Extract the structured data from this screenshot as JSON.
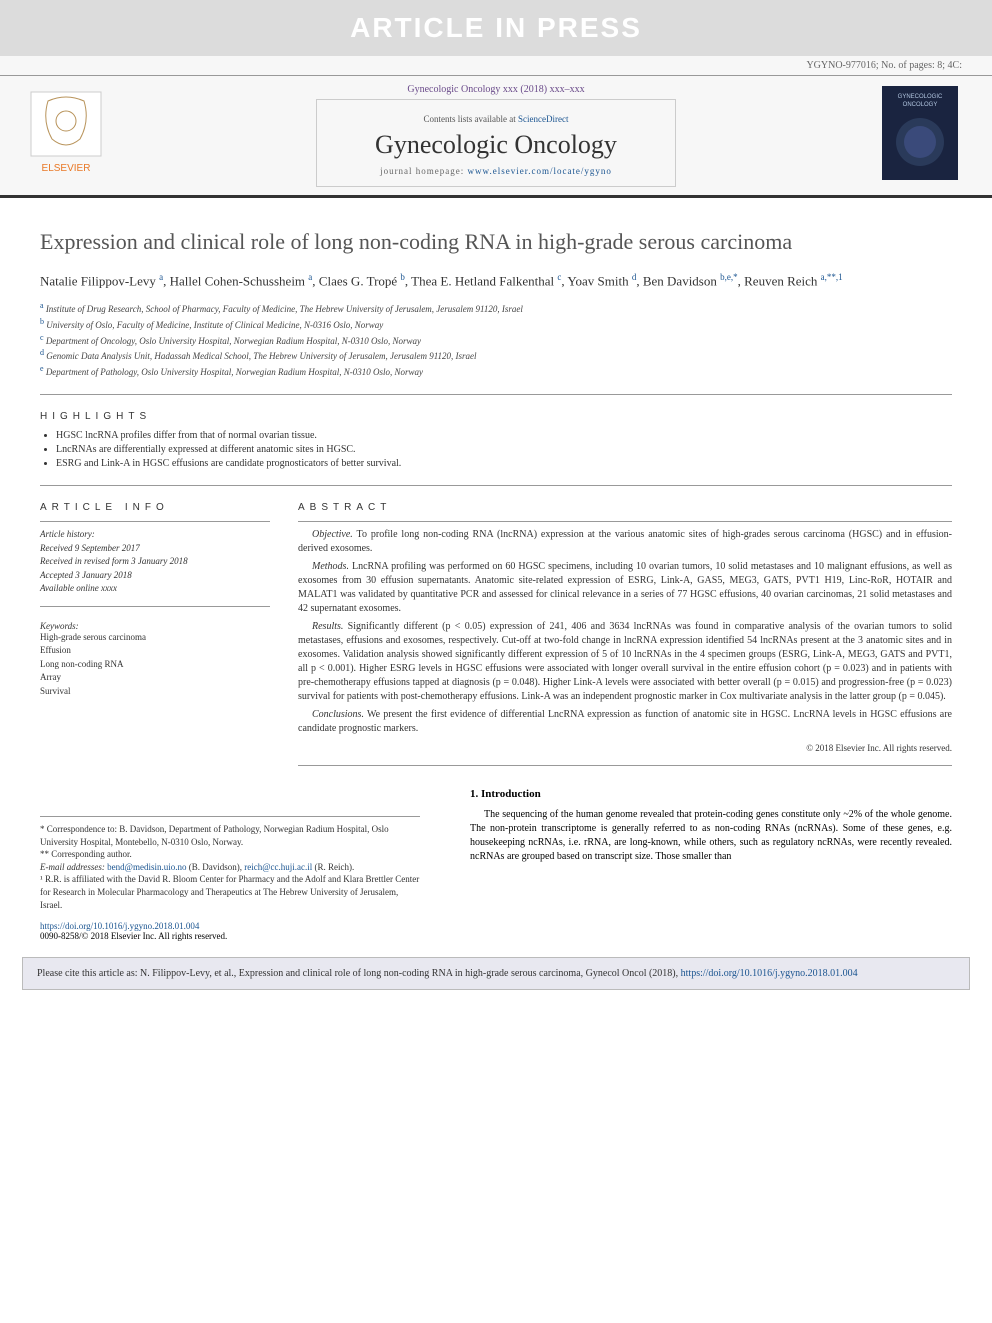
{
  "banner": "ARTICLE IN PRESS",
  "header": {
    "docref": "YGYNO-977016; No. of pages: 8; 4C:",
    "citation": "Gynecologic Oncology xxx (2018) xxx–xxx",
    "contents_prefix": "Contents lists available at ",
    "contents_link": "ScienceDirect",
    "journal": "Gynecologic Oncology",
    "homepage_prefix": "journal homepage: ",
    "homepage_link": "www.elsevier.com/locate/ygyno",
    "publisher_label": "ELSEVIER",
    "cover_label": "GYNECOLOGIC ONCOLOGY"
  },
  "title": "Expression and clinical role of long non-coding RNA in high-grade serous carcinoma",
  "authors_html": "Natalie Filippov-Levy <sup>a</sup>, Hallel Cohen-Schussheim <sup>a</sup>, Claes G. Tropé <sup>b</sup>, Thea E. Hetland Falkenthal <sup>c</sup>, Yoav Smith <sup>d</sup>, Ben Davidson <sup>b,e,*</sup>, Reuven Reich <sup>a,**,1</sup>",
  "affiliations": [
    {
      "sup": "a",
      "text": "Institute of Drug Research, School of Pharmacy, Faculty of Medicine, The Hebrew University of Jerusalem, Jerusalem 91120, Israel"
    },
    {
      "sup": "b",
      "text": "University of Oslo, Faculty of Medicine, Institute of Clinical Medicine, N-0316 Oslo, Norway"
    },
    {
      "sup": "c",
      "text": "Department of Oncology, Oslo University Hospital, Norwegian Radium Hospital, N-0310 Oslo, Norway"
    },
    {
      "sup": "d",
      "text": "Genomic Data Analysis Unit, Hadassah Medical School, The Hebrew University of Jerusalem, Jerusalem 91120, Israel"
    },
    {
      "sup": "e",
      "text": "Department of Pathology, Oslo University Hospital, Norwegian Radium Hospital, N-0310 Oslo, Norway"
    }
  ],
  "highlights_label": "HIGHLIGHTS",
  "highlights": [
    "HGSC lncRNA profiles differ from that of normal ovarian tissue.",
    "LncRNAs are differentially expressed at different anatomic sites in HGSC.",
    "ESRG and Link-A in HGSC effusions are candidate prognosticators of better survival."
  ],
  "article_info_label": "ARTICLE INFO",
  "history": {
    "hdr": "Article history:",
    "received": "Received 9 September 2017",
    "revised": "Received in revised form 3 January 2018",
    "accepted": "Accepted 3 January 2018",
    "online": "Available online xxxx"
  },
  "keywords_hdr": "Keywords:",
  "keywords": [
    "High-grade serous carcinoma",
    "Effusion",
    "Long non-coding RNA",
    "Array",
    "Survival"
  ],
  "abstract_label": "ABSTRACT",
  "abstract": {
    "objective": {
      "lbl": "Objective.",
      "txt": " To profile long non-coding RNA (lncRNA) expression at the various anatomic sites of high-grades serous carcinoma (HGSC) and in effusion-derived exosomes."
    },
    "methods": {
      "lbl": "Methods.",
      "txt": " LncRNA profiling was performed on 60 HGSC specimens, including 10 ovarian tumors, 10 solid metastases and 10 malignant effusions, as well as exosomes from 30 effusion supernatants. Anatomic site-related expression of ESRG, Link-A, GAS5, MEG3, GATS, PVT1 H19, Linc-RoR, HOTAIR and MALAT1 was validated by quantitative PCR and assessed for clinical relevance in a series of 77 HGSC effusions, 40 ovarian carcinomas, 21 solid metastases and 42 supernatant exosomes."
    },
    "results": {
      "lbl": "Results.",
      "txt": " Significantly different (p < 0.05) expression of 241, 406 and 3634 lncRNAs was found in comparative analysis of the ovarian tumors to solid metastases, effusions and exosomes, respectively. Cut-off at two-fold change in lncRNA expression identified 54 lncRNAs present at the 3 anatomic sites and in exosomes. Validation analysis showed significantly different expression of 5 of 10 lncRNAs in the 4 specimen groups (ESRG, Link-A, MEG3, GATS and PVT1, all p < 0.001). Higher ESRG levels in HGSC effusions were associated with longer overall survival in the entire effusion cohort (p = 0.023) and in patients with pre-chemotherapy effusions tapped at diagnosis (p = 0.048). Higher Link-A levels were associated with better overall (p = 0.015) and progression-free (p = 0.023) survival for patients with post-chemotherapy effusions. Link-A was an independent prognostic marker in Cox multivariate analysis in the latter group (p = 0.045)."
    },
    "conclusions": {
      "lbl": "Conclusions.",
      "txt": " We present the first evidence of differential LncRNA expression as function of anatomic site in HGSC. LncRNA levels in HGSC effusions are candidate prognostic markers."
    }
  },
  "copyright": "© 2018 Elsevier Inc. All rights reserved.",
  "intro": {
    "hdr": "1. Introduction",
    "body": "The sequencing of the human genome revealed that protein-coding genes constitute only ~2% of the whole genome. The non-protein transcriptome is generally referred to as non-coding RNAs (ncRNAs). Some of these genes, e.g. housekeeping ncRNAs, i.e. rRNA, are long-known, while others, such as regulatory ncRNAs, were recently revealed. ncRNAs are grouped based on transcript size. Those smaller than"
  },
  "footnotes": {
    "corr1": "* Correspondence to: B. Davidson, Department of Pathology, Norwegian Radium Hospital, Oslo University Hospital, Montebello, N-0310 Oslo, Norway.",
    "corr2": "** Corresponding author.",
    "email_lbl": "E-mail addresses: ",
    "email1": "bend@medisin.uio.no",
    "email1_who": " (B. Davidson), ",
    "email2": "reich@cc.huji.ac.il",
    "email2_who": " (R. Reich).",
    "note1": "¹ R.R. is affiliated with the David R. Bloom Center for Pharmacy and the Adolf and Klara Brettler Center for Research in Molecular Pharmacology and Therapeutics at The Hebrew University of Jerusalem, Israel."
  },
  "footer": {
    "doi": "https://doi.org/10.1016/j.ygyno.2018.01.004",
    "issn": "0090-8258/© 2018 Elsevier Inc. All rights reserved."
  },
  "citebox": {
    "prefix": "Please cite this article as: N. Filippov-Levy, et al., Expression and clinical role of long non-coding RNA in high-grade serous carcinoma, Gynecol Oncol (2018), ",
    "link": "https://doi.org/10.1016/j.ygyno.2018.01.004"
  },
  "colors": {
    "banner_bg": "#dcdcdc",
    "link": "#1a5490",
    "citation": "#6a4a8a",
    "elsevier_orange": "#e97826",
    "cover_bg": "#1a2440"
  }
}
